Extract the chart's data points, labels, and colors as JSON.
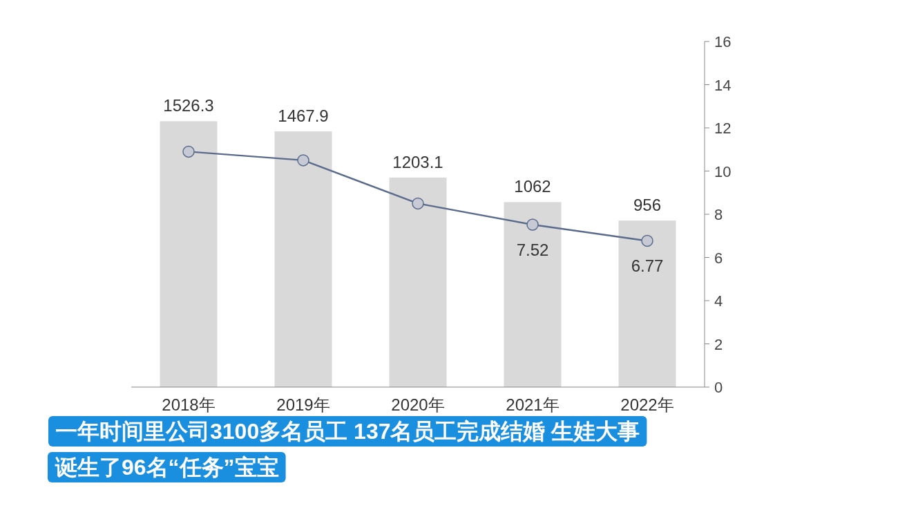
{
  "chart_data": {
    "type": "bar",
    "categories": [
      "2018年",
      "2019年",
      "2020年",
      "2021年",
      "2022年"
    ],
    "series": [
      {
        "color": "#d9d9d9",
        "values": [
          1526.3,
          1467.9,
          1203.1,
          1062,
          956
        ],
        "value_labels": [
          "1526.3",
          "1467.9",
          "1203.1",
          "1062",
          "956"
        ]
      },
      {
        "type": "line",
        "axis": "y2",
        "color": "#5b6b8c",
        "values": [
          10.9,
          10.5,
          8.5,
          7.52,
          6.77
        ],
        "value_labels": [
          null,
          null,
          null,
          "7.52",
          "6.77"
        ]
      }
    ],
    "y2lim": [
      0,
      16
    ],
    "y2ticks": [
      0,
      2,
      4,
      6,
      8,
      10,
      12,
      14,
      16
    ],
    "marker": "circle",
    "grid": false,
    "annotations": [
      "一年时间里公司3100多名员工 137名员工完成结婚 生娃大事",
      "诞生了96名“任务”宝宝"
    ]
  }
}
